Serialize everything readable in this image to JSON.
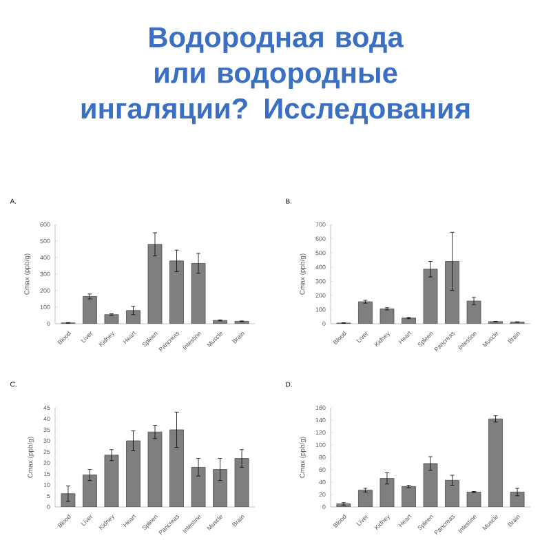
{
  "chart_data": [
    {
      "type": "bar",
      "title": "A.",
      "annotations": [
        "Водородная вода или водородные ингаляции? Исследования"
      ],
      "ylabel": "Cmax (ppb/g)",
      "categories": [
        "Blood",
        "Liver",
        "Kidney",
        "Heart",
        "Spleen",
        "Pancreas",
        "Intestine",
        "Muscle",
        "Brain"
      ],
      "color": "#7f7f7f",
      "values": [
        5,
        165,
        55,
        80,
        480,
        380,
        365,
        20,
        15
      ],
      "errors": [
        2,
        15,
        5,
        25,
        70,
        65,
        60,
        3,
        2
      ],
      "ylim": [
        0,
        600
      ],
      "yticks": [
        0,
        100,
        200,
        300,
        400,
        500,
        600
      ]
    },
    {
      "type": "bar",
      "title": "B.",
      "ylabel": "Cmax (ppb/g)",
      "categories": [
        "Blood",
        "Liver",
        "Kidney",
        "Heart",
        "Spleen",
        "Pancreas",
        "Intestine",
        "Muscle",
        "Brain"
      ],
      "color": "#7f7f7f",
      "values": [
        5,
        155,
        105,
        40,
        385,
        440,
        160,
        15,
        12
      ],
      "errors": [
        2,
        10,
        8,
        5,
        55,
        205,
        25,
        2,
        2
      ],
      "ylim": [
        0,
        700
      ],
      "yticks": [
        0,
        100,
        200,
        300,
        400,
        500,
        600,
        700
      ]
    },
    {
      "type": "bar",
      "title": "C.",
      "ylabel": "Cmax (ppb/g)",
      "categories": [
        "Blood",
        "Liver",
        "Kidney",
        "Heart",
        "Spleen",
        "Pancreas",
        "Intestine",
        "Muscle",
        "Brain"
      ],
      "color": "#7f7f7f",
      "values": [
        6,
        14.5,
        23.5,
        30,
        34,
        35,
        18,
        17,
        22
      ],
      "errors": [
        3.5,
        2.5,
        2.5,
        4.5,
        3,
        8,
        4,
        5,
        4
      ],
      "ylim": [
        0,
        45
      ],
      "yticks": [
        0,
        5,
        10,
        15,
        20,
        25,
        30,
        35,
        40,
        45
      ]
    },
    {
      "type": "bar",
      "title": "D.",
      "ylabel": "Cmax (ppb/g)",
      "categories": [
        "Blood",
        "Liver",
        "Kidney",
        "Heart",
        "Spleen",
        "Pancreas",
        "Intestine",
        "Muscle",
        "Brain"
      ],
      "color": "#7f7f7f",
      "values": [
        5,
        27,
        46,
        33,
        70,
        43,
        24,
        142,
        24
      ],
      "errors": [
        2,
        3,
        9,
        2,
        11,
        8,
        1,
        5,
        6
      ],
      "ylim": [
        0,
        160
      ],
      "yticks": [
        0,
        20,
        40,
        60,
        80,
        100,
        120,
        140,
        160
      ]
    }
  ]
}
